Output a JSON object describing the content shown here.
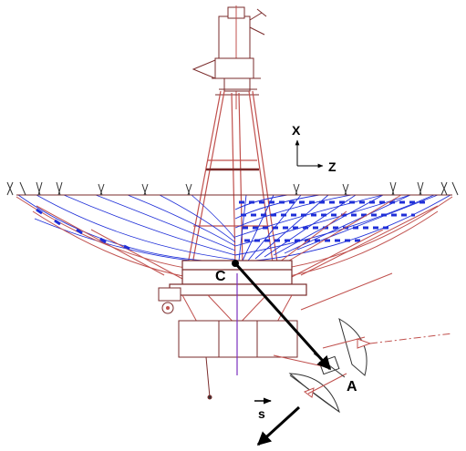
{
  "labels": {
    "axis_x": "X",
    "axis_z": "Z",
    "point_c": "C",
    "point_a": "A",
    "vector_s": "s"
  },
  "colors": {
    "structure": "#c0504d",
    "structure_dark": "#7a2b2b",
    "mesh": "#1f2fd8",
    "feed_axis": "#7b2fbf",
    "arrow": "#000000"
  },
  "icons": {
    "coordinate_axes": "axes-xz-icon",
    "vector_arrow": "arrow-icon"
  }
}
